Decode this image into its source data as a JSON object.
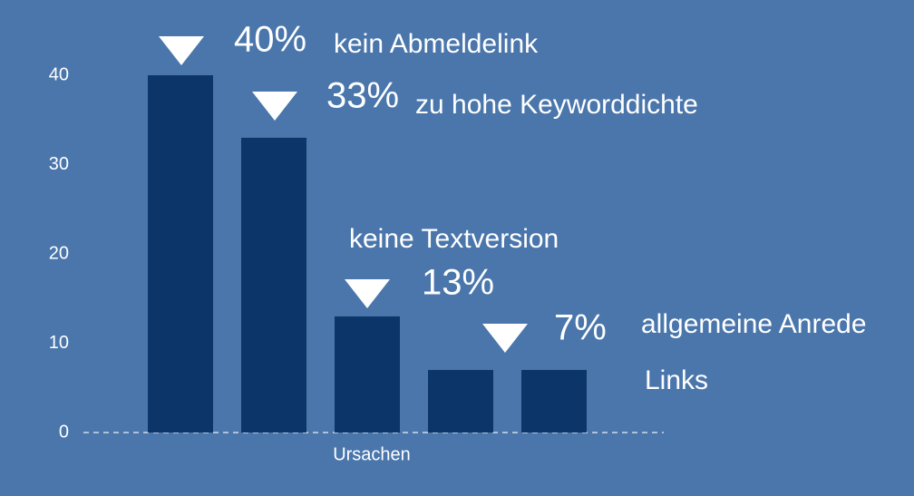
{
  "chart_data": {
    "type": "bar",
    "x_label": "Ursachen",
    "categories": [
      "kein Abmeldelink",
      "zu hohe Keyworddichte",
      "keine Textversion",
      "allgemeine Anrede",
      "Links"
    ],
    "values": [
      40,
      33,
      13,
      7,
      7
    ],
    "value_labels": [
      "40%",
      "33%",
      "13%",
      "7%",
      null
    ],
    "color": "#0c3669",
    "ylim": [
      0,
      40
    ],
    "yticks": [
      0,
      10,
      20,
      30,
      40
    ],
    "grid": false
  }
}
